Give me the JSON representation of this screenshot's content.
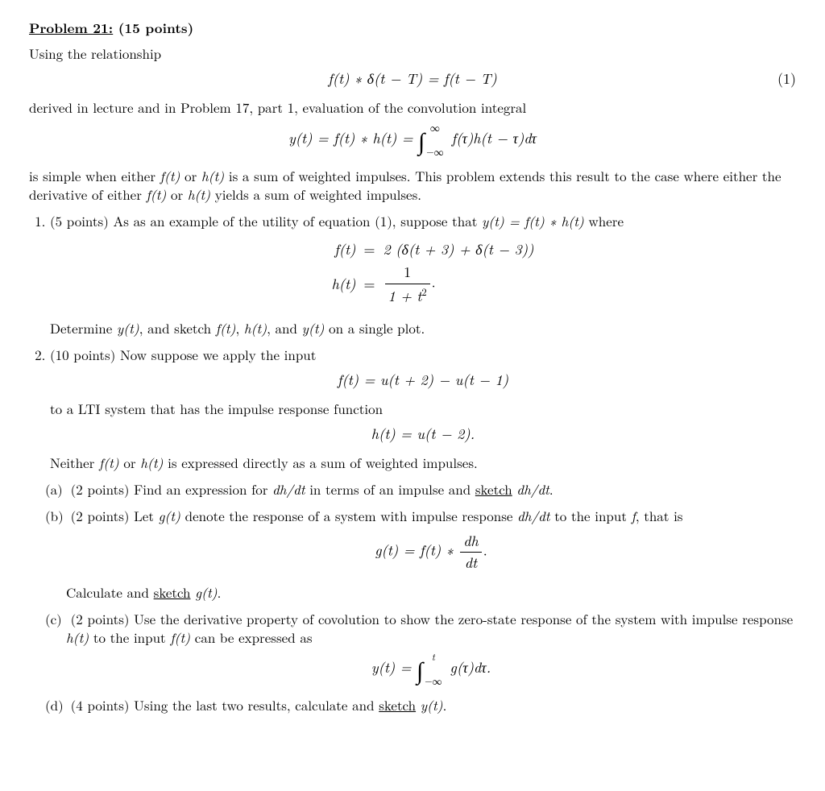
{
  "title_label": "Problem 21:",
  "title_points": "(15 points)",
  "intro1": "Using the relationship",
  "eq1_body": "f(t) ∗ δ(t − T) = f(t − T)",
  "eq1_num": "(1)",
  "intro2": "derived in lecture and in Problem 17, part 1, evaluation of the convolution integral",
  "eq2_lhs": "y(t) = f(t) ∗ h(t) = ",
  "eq2_upper": "∞",
  "eq2_lower": "−∞",
  "eq2_int": "f(τ)h(t − τ)dτ",
  "intro3a": "is simple when either ",
  "intro3b": " or ",
  "intro3c": " is a sum of weighted impulses. This problem extends this result to the case where either the derivative of either ",
  "intro3d": " or ",
  "intro3e": " yields a sum of weighted impulses.",
  "ft": "f(t)",
  "ht": "h(t)",
  "yt": "y(t)",
  "q1_lead": "(5 points) As as an example of the utility of equation (1), suppose that ",
  "q1_tail": " where",
  "eqyfh": "y(t) = f(t) ∗ h(t)",
  "q1_f_lhs": "f(t)",
  "q1_f_rhs": "2 (δ(t + 3) + δ(t − 3))",
  "q1_h_lhs": "h(t)",
  "q1_h_num": "1",
  "q1_h_den": "1 + t",
  "q1_det_a": "Determine ",
  "q1_det_b": ", and sketch ",
  "q1_det_c": ", ",
  "q1_det_d": ", and ",
  "q1_det_e": " on a single plot.",
  "q2_lead": "(10 points) Now suppose we apply the input",
  "eq_q2_f": "f(t) = u(t + 2) − u(t − 1)",
  "q2_mid": "to a LTI system that has the impulse response function",
  "eq_q2_h": "h(t) = u(t − 2).",
  "q2_neither_a": "Neither ",
  "q2_neither_b": " or ",
  "q2_neither_c": " is expressed directly as a sum of weighted impulses.",
  "a_lab": "(a)",
  "a_text_a": "(2 points) Find an expression for ",
  "a_text_b": " in terms of an impulse and ",
  "a_sketch": "sketch",
  "a_text_c": " ",
  "a_text_d": ".",
  "dhdt": "dh/dt",
  "b_lab": "(b)",
  "b_text_a": "(2 points) Let ",
  "gt": "g(t)",
  "b_text_b": " denote the response of a system with impulse response ",
  "b_text_c": " to the input ",
  "f_only": "f",
  "b_text_d": ", that is",
  "eq_b_lhs": "g(t) = f(t) ∗ ",
  "eq_b_num": "dh",
  "eq_b_den": "dt",
  "b_calc_a": "Calculate and ",
  "b_calc_b": " ",
  "b_calc_c": ".",
  "c_lab": "(c)",
  "c_text_a": "(2 points) Use the derivative property of covolution to show the zero-state response of the system with impulse response ",
  "c_text_b": " to the input ",
  "c_text_c": " can be expressed as",
  "eq_c_lhs": "y(t) = ",
  "eq_c_upper": "t",
  "eq_c_lower": "−∞",
  "eq_c_int": "g(τ)dτ.",
  "d_lab": "(d)",
  "d_text_a": "(4 points) Using the last two results, calculate and ",
  "d_text_b": " ",
  "d_text_c": "."
}
